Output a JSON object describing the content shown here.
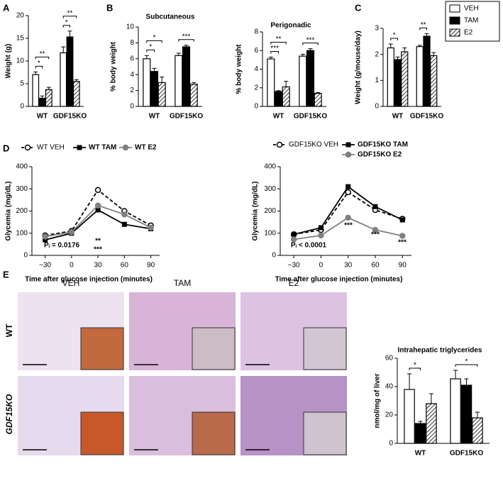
{
  "panel_labels": [
    "A",
    "B",
    "C",
    "D",
    "E"
  ],
  "histology": {
    "columns": [
      "VEH",
      "TAM",
      "E2"
    ],
    "rows": [
      "WT",
      "GDF15KO"
    ]
  },
  "chart_data": [
    {
      "type": "bar",
      "ylabel": "Weight (g)",
      "categories": [
        "WT",
        "GDF15KO"
      ],
      "ylim": [
        0,
        20
      ],
      "yticks": [
        0,
        5,
        10,
        15,
        20
      ],
      "series": [
        {
          "fill": "white",
          "values": [
            7.0,
            11.8
          ],
          "errors": [
            0.6,
            1.3
          ]
        },
        {
          "fill": "black",
          "values": [
            1.8,
            15.3
          ],
          "errors": [
            0.5,
            1.3
          ]
        },
        {
          "fill": "hatch",
          "values": [
            3.7,
            5.5
          ],
          "errors": [
            0.5,
            0.4
          ]
        }
      ],
      "annotations": [
        "*",
        "**",
        "*",
        "**"
      ]
    },
    {
      "type": "bar",
      "title": "Subcutaneous",
      "ylabel": "% body weight",
      "categories": [
        "WT",
        "GDF15KO"
      ],
      "ylim": [
        0,
        10
      ],
      "yticks": [
        0,
        2,
        4,
        6,
        8,
        10
      ],
      "series": [
        {
          "fill": "white",
          "values": [
            6.0,
            6.4
          ],
          "errors": [
            0.4,
            0.3
          ]
        },
        {
          "fill": "black",
          "values": [
            4.4,
            7.5
          ],
          "errors": [
            0.4,
            0.2
          ]
        },
        {
          "fill": "hatch",
          "values": [
            3.0,
            2.8
          ],
          "errors": [
            0.7,
            0.2
          ]
        }
      ],
      "annotations": [
        "*",
        "*",
        "***"
      ]
    },
    {
      "type": "bar",
      "title": "Perigonadic",
      "ylabel": "% body weight",
      "categories": [
        "WT",
        "GDF15KO"
      ],
      "ylim": [
        0,
        8
      ],
      "yticks": [
        0,
        2,
        4,
        6,
        8
      ],
      "series": [
        {
          "fill": "white",
          "values": [
            5.1,
            5.4
          ],
          "errors": [
            0.2,
            0.2
          ]
        },
        {
          "fill": "black",
          "values": [
            1.6,
            6.0
          ],
          "errors": [
            0.1,
            0.2
          ]
        },
        {
          "fill": "hatch",
          "values": [
            2.1,
            1.4
          ],
          "errors": [
            0.6,
            0.1
          ]
        }
      ],
      "annotations": [
        "***",
        "**",
        "***"
      ]
    },
    {
      "type": "bar",
      "ylabel": "Weight (g/mouse/day)",
      "categories": [
        "WT",
        "GDF15KO"
      ],
      "ylim": [
        0,
        3
      ],
      "yticks": [
        0,
        1,
        2,
        3
      ],
      "series": [
        {
          "name": "VEH",
          "fill": "white",
          "values": [
            2.25,
            2.3
          ],
          "errors": [
            0.15,
            0.05
          ]
        },
        {
          "name": "TAM",
          "fill": "black",
          "values": [
            1.8,
            2.7
          ],
          "errors": [
            0.1,
            0.1
          ]
        },
        {
          "name": "E2",
          "fill": "hatch",
          "values": [
            2.1,
            1.95
          ],
          "errors": [
            0.15,
            0.12
          ]
        }
      ],
      "annotations": [
        "*",
        "**"
      ]
    },
    {
      "type": "line",
      "ylabel": "Glycemia (mg/dL)",
      "xlabel": "Time after glucose injection (minutes)",
      "x": [
        -30,
        0,
        30,
        60,
        90
      ],
      "xlim": [
        -45,
        100
      ],
      "xticks": [
        {
          "value": -30,
          "label": "−30"
        },
        0,
        30,
        60,
        90
      ],
      "ylim": [
        0,
        400
      ],
      "yticks": [
        0,
        100,
        200,
        300,
        400
      ],
      "series": [
        {
          "name": "WT VEH",
          "color": "#000000",
          "dash": true,
          "marker": "open-circle",
          "values": [
            90,
            110,
            295,
            200,
            135
          ]
        },
        {
          "name": "WT TAM",
          "color": "#000000",
          "dash": false,
          "marker": "square",
          "values": [
            70,
            100,
            205,
            140,
            120
          ]
        },
        {
          "name": "WT E2",
          "color": "#808080",
          "dash": false,
          "marker": "circle",
          "values": [
            85,
            105,
            225,
            185,
            125
          ]
        }
      ],
      "annotations": [
        {
          "text": "**",
          "color": "#808080"
        },
        {
          "text": "***",
          "color": "#000000"
        },
        {
          "text": "Pᵢ = 0.0176",
          "color": "#000000"
        }
      ]
    },
    {
      "type": "line",
      "ylabel": "Glycemia (mg/dL)",
      "xlabel": "Time after glucose injection (minutes)",
      "x": [
        -30,
        0,
        30,
        60,
        90
      ],
      "xlim": [
        -45,
        100
      ],
      "xticks": [
        {
          "value": -30,
          "label": "−30"
        },
        0,
        30,
        60,
        90
      ],
      "ylim": [
        0,
        400
      ],
      "yticks": [
        0,
        100,
        200,
        300,
        400
      ],
      "series": [
        {
          "name": "GDF15KO VEH",
          "color": "#000000",
          "dash": true,
          "marker": "open-circle",
          "values": [
            95,
            115,
            285,
            205,
            165
          ]
        },
        {
          "name": "GDF15KO TAM",
          "color": "#000000",
          "dash": false,
          "marker": "square",
          "values": [
            95,
            125,
            310,
            220,
            160
          ]
        },
        {
          "name": "GDF15KO E2",
          "color": "#808080",
          "dash": false,
          "marker": "circle",
          "values": [
            72,
            90,
            170,
            115,
            88
          ]
        }
      ],
      "annotations": [
        {
          "text": "***",
          "color": "#808080"
        },
        {
          "text": "***",
          "color": "#808080"
        },
        {
          "text": "***",
          "color": "#808080"
        },
        {
          "text": "Pᵢ < 0.0001",
          "color": "#000000"
        }
      ]
    },
    {
      "type": "bar",
      "title": "Intrahepatic triglycerides",
      "ylabel": "nmol/mg of liver",
      "categories": [
        "WT",
        "GDF15KO"
      ],
      "ylim": [
        0,
        60
      ],
      "yticks": [
        0,
        20,
        40,
        60
      ],
      "series": [
        {
          "fill": "white",
          "values": [
            38,
            45.5
          ],
          "errors": [
            11,
            6
          ]
        },
        {
          "fill": "black",
          "values": [
            14,
            41
          ],
          "errors": [
            1.5,
            4.5
          ]
        },
        {
          "fill": "hatch",
          "values": [
            28,
            18
          ],
          "errors": [
            7,
            4
          ]
        }
      ],
      "annotations": [
        "*",
        "*"
      ]
    }
  ]
}
